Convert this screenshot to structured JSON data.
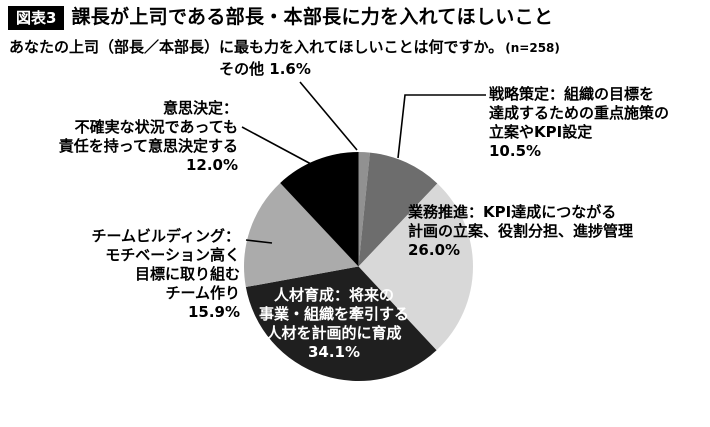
{
  "header": {
    "badge": "図表3",
    "title": "課長が上司である部長・本部長に力を入れてほしいこと",
    "subtitle": "あなたの上司（部長／本部長）に最も力を入れてほしいことは何ですか。",
    "sample_size": "(n=258)"
  },
  "chart_data": {
    "type": "pie",
    "title": "課長が上司である部長・本部長に力を入れてほしいこと",
    "question": "あなたの上司（部長／本部長）に最も力を入れてほしいことは何ですか。",
    "n": 258,
    "unit": "%",
    "start_angle_deg": 0,
    "direction": "clockwise",
    "segments": [
      {
        "name": "その他",
        "value": 1.6,
        "color": "#919191",
        "label": "その他 1.6%"
      },
      {
        "name": "戦略策定",
        "value": 10.5,
        "color": "#6d6d6d",
        "label": "戦略策定：組織の目標を\n達成するための重点施策の\n立案やKPI設定\n10.5%"
      },
      {
        "name": "業務推進",
        "value": 26.0,
        "color": "#d8d8d8",
        "label": "業務推進：KPI達成につながる\n計画の立案、役割分担、進捗管理\n26.0%"
      },
      {
        "name": "人材育成",
        "value": 34.1,
        "color": "#1f1f1f",
        "label": "人材育成：将来の\n事業・組織を牽引する\n人材を計画的に育成\n34.1%",
        "label_color": "#ffffff"
      },
      {
        "name": "チームビルディング",
        "value": 15.9,
        "color": "#ababab",
        "label": "チームビルディング：\nモチベーション高く\n目標に取り組む\nチーム作り\n15.9%"
      },
      {
        "name": "意思決定",
        "value": 12.0,
        "color": "#000000",
        "label": "意思決定：\n不確実な状況であっても\n責任を持って意思決定する\n12.0%"
      }
    ]
  }
}
